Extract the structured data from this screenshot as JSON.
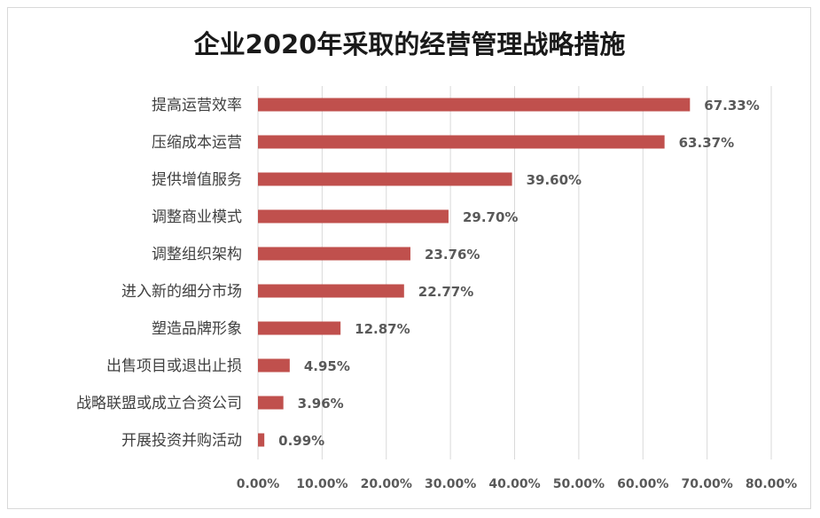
{
  "chart_data": {
    "type": "bar",
    "orientation": "horizontal",
    "title": "企业2020年采取的经营管理战略措施",
    "categories": [
      "提高运营效率",
      "压缩成本运营",
      "提供增值服务",
      "调整商业模式",
      "调整组织架构",
      "进入新的细分市场",
      "塑造品牌形象",
      "出售项目或退出止损",
      "战略联盟或成立合资公司",
      "开展投资并购活动"
    ],
    "values": [
      67.33,
      63.37,
      39.6,
      29.7,
      23.76,
      22.77,
      12.87,
      4.95,
      3.96,
      0.99
    ],
    "value_labels": [
      "67.33%",
      "63.37%",
      "39.60%",
      "29.70%",
      "23.76%",
      "22.77%",
      "12.87%",
      "4.95%",
      "3.96%",
      "0.99%"
    ],
    "xlim": [
      0,
      80
    ],
    "x_ticks": [
      0,
      10,
      20,
      30,
      40,
      50,
      60,
      70,
      80
    ],
    "x_tick_labels": [
      "0.00%",
      "10.00%",
      "20.00%",
      "30.00%",
      "40.00%",
      "50.00%",
      "60.00%",
      "70.00%",
      "80.00%"
    ],
    "grid": "vertical",
    "bar_color": "#c0504d"
  }
}
